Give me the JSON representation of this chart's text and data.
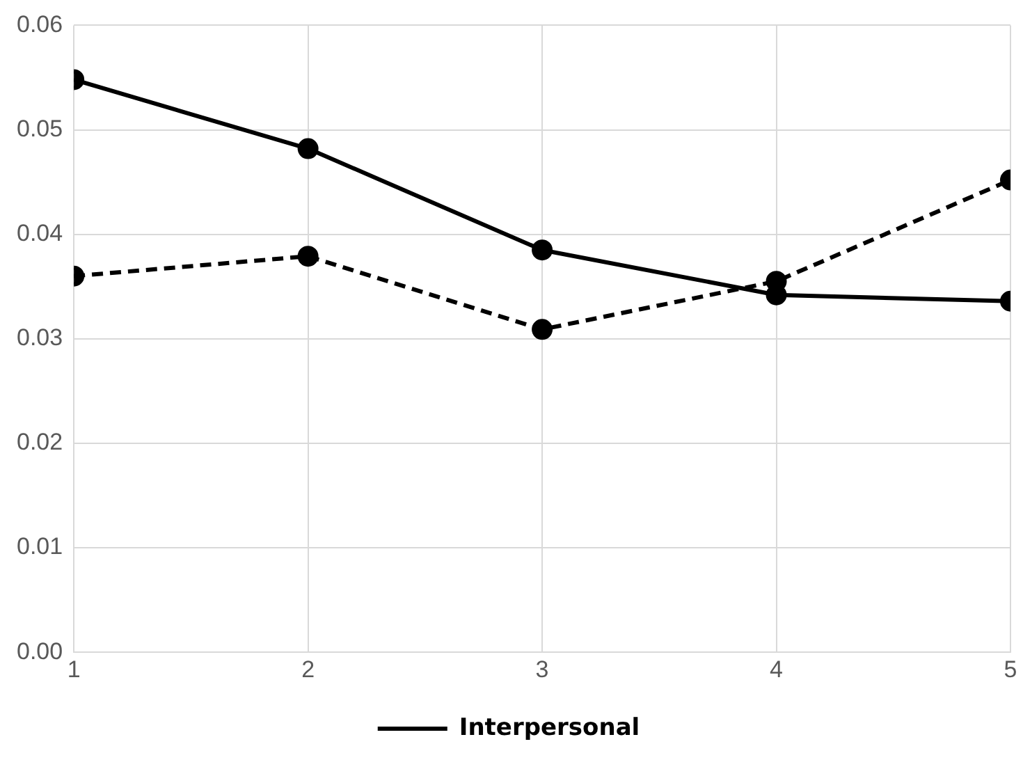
{
  "chart_data": {
    "type": "line",
    "x": [
      1,
      2,
      3,
      4,
      5
    ],
    "xlim": [
      1,
      5
    ],
    "xticks": [
      1,
      2,
      3,
      4,
      5
    ],
    "ylim": [
      0,
      0.06
    ],
    "yticks": [
      {
        "value": 0,
        "label": "0.00"
      },
      {
        "value": 0.01,
        "label": "0.01"
      },
      {
        "value": 0.02,
        "label": "0.02"
      },
      {
        "value": 0.03,
        "label": "0.03"
      },
      {
        "value": 0.04,
        "label": "0.04"
      },
      {
        "value": 0.05,
        "label": "0.05"
      },
      {
        "value": 0.06,
        "label": "0.06"
      }
    ],
    "grid": true,
    "legend": "bottom",
    "marker": "circle",
    "series": [
      {
        "name": "Interpersonal",
        "color": "#000000",
        "line_style": "solid",
        "values": [
          0.0548,
          0.0482,
          0.0385,
          0.0342,
          0.0336
        ]
      },
      {
        "color": "#000000",
        "line_style": "dashed",
        "values": [
          0.036,
          0.0379,
          0.0309,
          0.0355,
          0.0452
        ]
      }
    ]
  }
}
